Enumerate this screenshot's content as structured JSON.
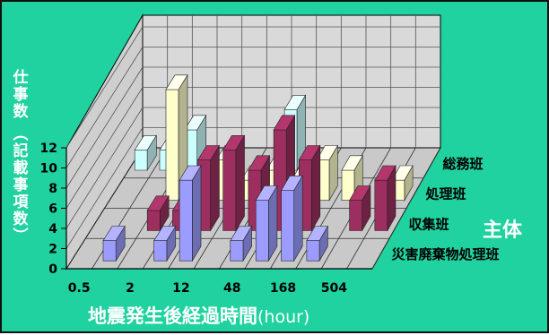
{
  "chart_data": {
    "type": "bar3d",
    "title": "",
    "xlabel_main": "地震発生後経過時間",
    "xlabel_unit": "(hour)",
    "ylabel_main": "仕事数",
    "ylabel_paren": "(記載事項数)",
    "zlabel": "主体",
    "ylim": [
      0,
      12
    ],
    "y_ticks": [
      "0",
      "2",
      "4",
      "6",
      "8",
      "10",
      "12"
    ],
    "x_ticks": [
      "0.5",
      "2",
      "12",
      "48",
      "168",
      "504"
    ],
    "x_slots": 12,
    "series": [
      {
        "name": "災害廃棄物処理班",
        "color": "#9c9cff",
        "values": [
          0,
          2,
          0,
          2,
          8,
          0,
          2,
          6,
          7,
          2,
          0,
          0
        ]
      },
      {
        "name": "収集班",
        "color": "#9c2f5f",
        "values": [
          0,
          0,
          2,
          2,
          7,
          8,
          6,
          10,
          7,
          0,
          3,
          5
        ]
      },
      {
        "name": "処理班",
        "color": "#ffffcc",
        "values": [
          0,
          0,
          11,
          1,
          4,
          2,
          3,
          2,
          4,
          3,
          0,
          2
        ]
      },
      {
        "name": "総務班",
        "color": "#ccffff",
        "values": [
          2,
          2,
          4,
          0,
          0,
          0,
          6,
          0,
          0,
          0,
          0,
          0
        ]
      }
    ]
  }
}
